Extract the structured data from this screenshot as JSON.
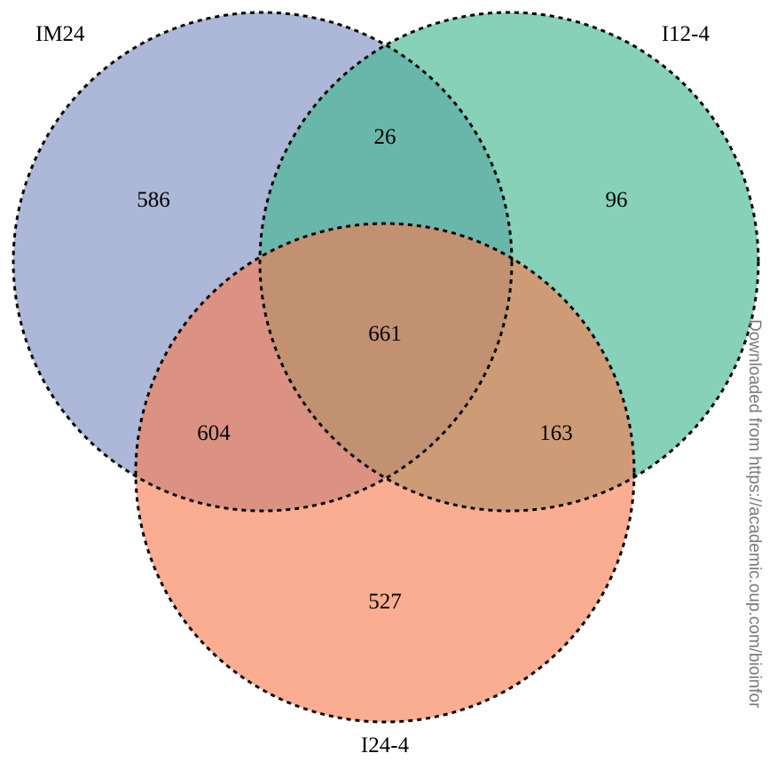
{
  "sets": [
    {
      "id": "im24",
      "label": "IM24",
      "color": "#7A8ABF"
    },
    {
      "id": "i12",
      "label": "I12-4",
      "color": "#3FB58E"
    },
    {
      "id": "i24",
      "label": "I24-4",
      "color": "#F77B4E"
    }
  ],
  "regions": {
    "im24_only": "586",
    "i12_only": "96",
    "i24_only": "527",
    "im24_i12": "26",
    "im24_i24": "604",
    "i12_i24": "163",
    "all": "661"
  },
  "outline_style": "dotted",
  "watermark": "Downloaded from https://academic.oup.com/bioinfor"
}
